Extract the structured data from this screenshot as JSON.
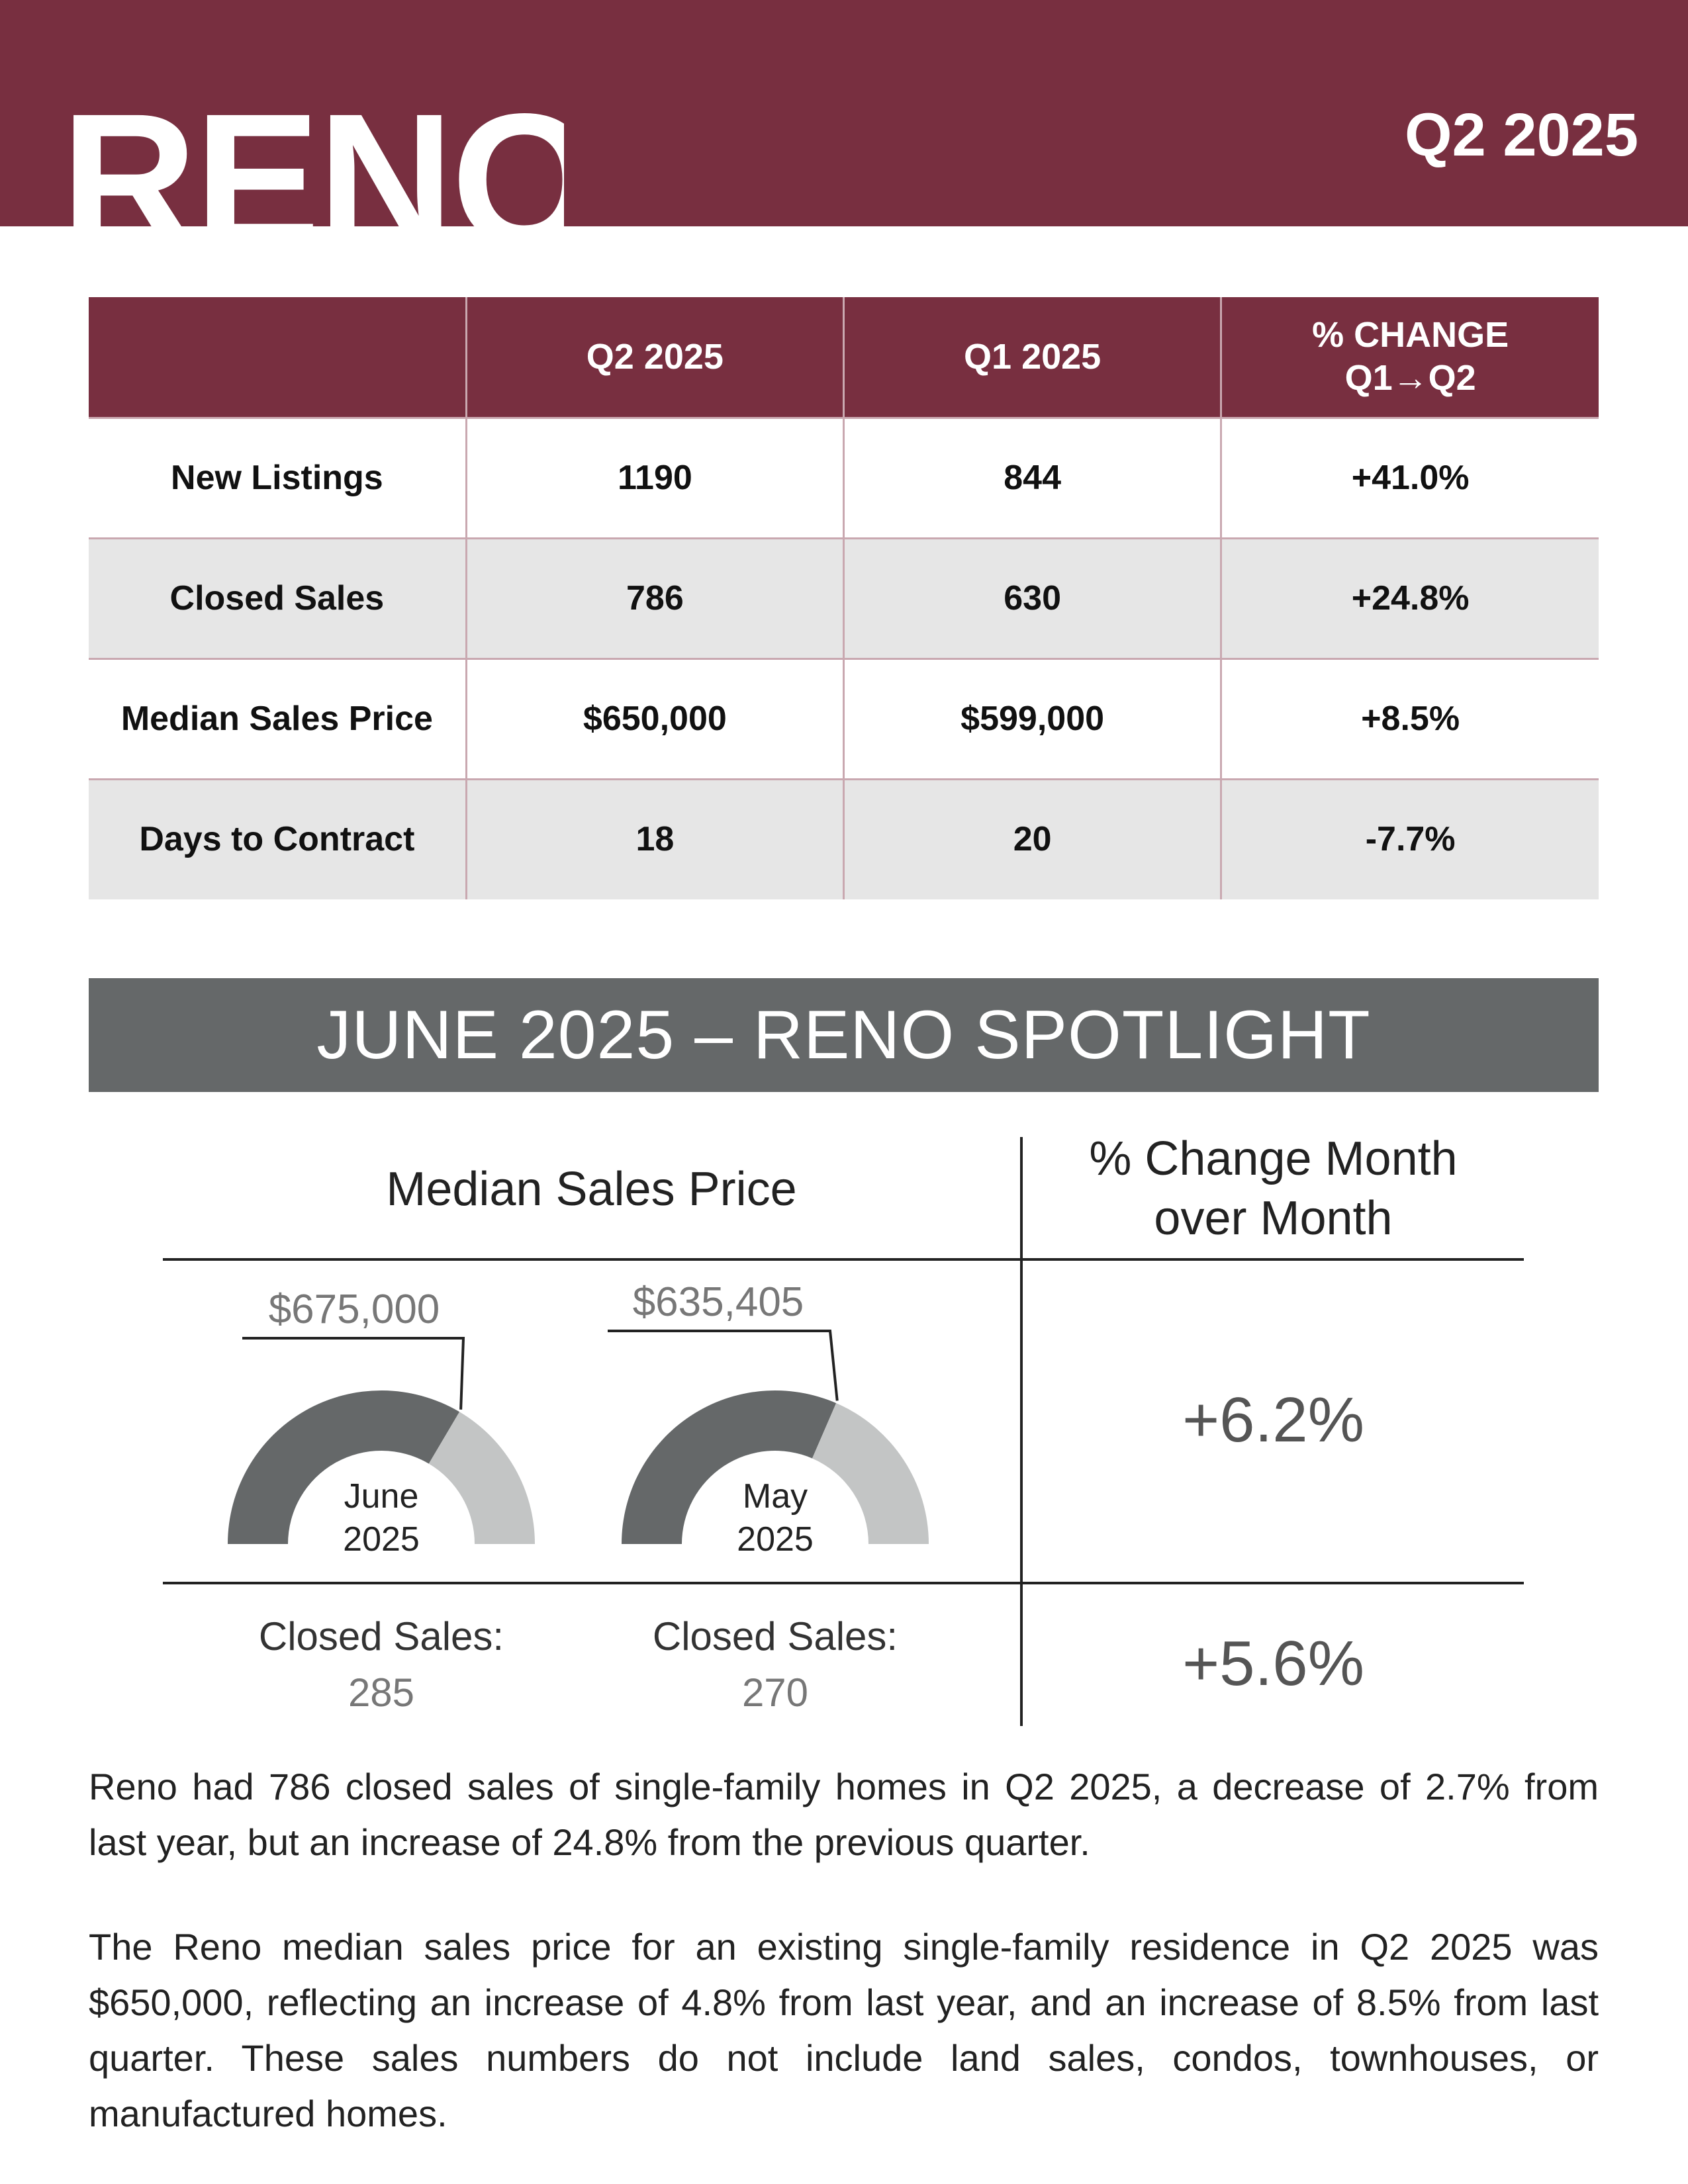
{
  "header": {
    "city": "RENO",
    "quarter": "Q2 2025",
    "band_color": "#782f40"
  },
  "stats_table": {
    "columns": [
      "",
      "Q2 2025",
      "Q1 2025",
      "% CHANGE\nQ1→Q2"
    ],
    "rows": [
      {
        "label": "New Listings",
        "q2": "1190",
        "q1": "844",
        "change": "+41.0%"
      },
      {
        "label": "Closed Sales",
        "q2": "786",
        "q1": "630",
        "change": "+24.8%"
      },
      {
        "label": "Median Sales Price",
        "q2": "$650,000",
        "q1": "$599,000",
        "change": "+8.5%"
      },
      {
        "label": "Days to Contract",
        "q2": "18",
        "q1": "20",
        "change": "-7.7%"
      }
    ]
  },
  "spotlight": {
    "title": "JUNE 2025 – RENO SPOTLIGHT",
    "median_header": "Median Sales Price",
    "change_header_line1": "% Change Month",
    "change_header_line2": "over Month",
    "gauges": [
      {
        "price": "$675,000",
        "month": "June",
        "year": "2025",
        "fill_fraction": 0.67
      },
      {
        "price": "$635,405",
        "month": "May",
        "year": "2025",
        "fill_fraction": 0.63
      }
    ],
    "price_change": "+6.2%",
    "closed_sales_label": "Closed Sales:",
    "closed_sales": [
      {
        "month": "June 2025",
        "value": "285"
      },
      {
        "month": "May 2025",
        "value": "270"
      }
    ],
    "sales_change": "+5.6%",
    "gauge_dark": "#656869",
    "gauge_light": "#c3c5c5"
  },
  "paragraphs": [
    "Reno had 786 closed sales of single-family homes in Q2 2025, a decrease of 2.7% from last year, but an increase of 24.8% from the previous quarter.",
    "The Reno median sales price for an existing single-family residence in Q2 2025 was $650,000, reflecting an increase of 4.8% from last year, and an increase of 8.5% from last quarter. These sales numbers do not include land sales, condos, townhouses, or manufactured homes."
  ]
}
